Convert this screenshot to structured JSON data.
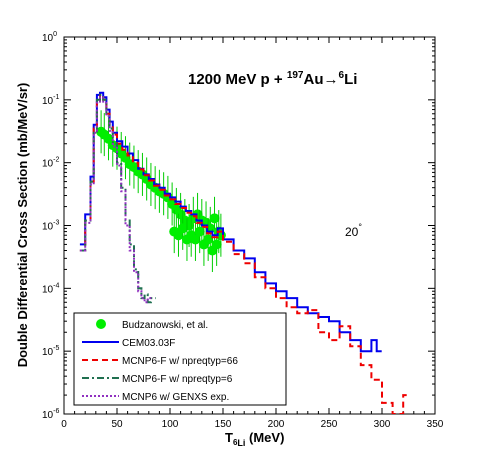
{
  "chart_data": {
    "type": "line",
    "title_parts": {
      "pre": "1200 MeV p + ",
      "sup1": "197",
      "mid": "Au",
      "arrow": "→",
      "sup2": "6",
      "post": "Li"
    },
    "annotation": {
      "value": "20",
      "unit": "°"
    },
    "xlabel": {
      "main": "T",
      "sub": "6",
      "sub2": "Li",
      "unit": " (MeV)"
    },
    "ylabel": "Double Differential Cross Section (mb/MeV/sr)",
    "xlim": [
      0,
      350
    ],
    "ylim_log10": [
      -6,
      0
    ],
    "x_ticks": [
      "0",
      "50",
      "100",
      "150",
      "200",
      "250",
      "300",
      "350"
    ],
    "y_ticks": [
      {
        "base": "10",
        "exp": "0"
      },
      {
        "base": "10",
        "exp": "-1"
      },
      {
        "base": "10",
        "exp": "-2"
      },
      {
        "base": "10",
        "exp": "-3"
      },
      {
        "base": "10",
        "exp": "-4"
      },
      {
        "base": "10",
        "exp": "-5"
      },
      {
        "base": "10",
        "exp": "-6"
      }
    ],
    "y_scale": "log",
    "legend_position": "bottom-left",
    "series": [
      {
        "name": "Budzanowski, et al.",
        "kind": "points",
        "color": "#00ee00",
        "points": [
          [
            35,
            0.031
          ],
          [
            38,
            0.028
          ],
          [
            42,
            0.024
          ],
          [
            46,
            0.019
          ],
          [
            50,
            0.017
          ],
          [
            54,
            0.014
          ],
          [
            58,
            0.012
          ],
          [
            62,
            0.0095
          ],
          [
            66,
            0.0085
          ],
          [
            70,
            0.0072
          ],
          [
            74,
            0.0065
          ],
          [
            78,
            0.0055
          ],
          [
            82,
            0.0045
          ],
          [
            86,
            0.004
          ],
          [
            90,
            0.0035
          ],
          [
            94,
            0.0032
          ],
          [
            98,
            0.0028
          ],
          [
            102,
            0.0022
          ],
          [
            106,
            0.0018
          ],
          [
            110,
            0.0015
          ],
          [
            114,
            0.0012
          ],
          [
            118,
            0.001
          ],
          [
            122,
            0.0013
          ],
          [
            126,
            0.0015
          ],
          [
            130,
            0.0012
          ],
          [
            134,
            0.0011
          ],
          [
            138,
            0.0009
          ],
          [
            142,
            0.0013
          ],
          [
            146,
            0.0008
          ],
          [
            104,
            0.0008
          ],
          [
            108,
            0.0007
          ],
          [
            112,
            0.0009
          ],
          [
            116,
            0.0006
          ],
          [
            120,
            0.0007
          ],
          [
            124,
            0.0006
          ],
          [
            128,
            0.0008
          ],
          [
            132,
            0.0005
          ],
          [
            136,
            0.0006
          ],
          [
            140,
            0.0004
          ],
          [
            144,
            0.0005
          ],
          [
            148,
            0.0007
          ]
        ]
      },
      {
        "name": "CEM03.03F",
        "kind": "step",
        "color": "#0000ee",
        "dash": "",
        "x": [
          15,
          20,
          25,
          28,
          31,
          34,
          37,
          40,
          43,
          46,
          50,
          55,
          60,
          65,
          70,
          75,
          80,
          85,
          90,
          95,
          100,
          105,
          110,
          115,
          120,
          125,
          130,
          135,
          140,
          145,
          150,
          160,
          170,
          180,
          190,
          200,
          210,
          220,
          230,
          240,
          250,
          260,
          270,
          280,
          290,
          295
        ],
        "y": [
          0.0005,
          0.0015,
          0.006,
          0.04,
          0.12,
          0.13,
          0.11,
          0.07,
          0.045,
          0.03,
          0.022,
          0.018,
          0.014,
          0.011,
          0.008,
          0.0065,
          0.0055,
          0.0045,
          0.004,
          0.0032,
          0.0028,
          0.0024,
          0.002,
          0.0017,
          0.0015,
          0.0012,
          0.001,
          0.0008,
          0.0007,
          0.0009,
          0.0006,
          0.0004,
          0.0003,
          0.00018,
          0.00012,
          9e-05,
          7e-05,
          5e-05,
          4e-05,
          3.5e-05,
          3e-05,
          2e-05,
          1.5e-05,
          1e-05,
          1.5e-05,
          1e-05
        ]
      },
      {
        "name": "MCNP6-F w/ npreqtyp=66",
        "kind": "step",
        "color": "#ee0000",
        "dash": "6,4",
        "x": [
          15,
          20,
          25,
          28,
          31,
          34,
          37,
          40,
          43,
          46,
          50,
          55,
          60,
          65,
          70,
          75,
          80,
          85,
          90,
          95,
          100,
          105,
          110,
          115,
          120,
          125,
          130,
          135,
          140,
          145,
          150,
          160,
          170,
          180,
          190,
          200,
          210,
          220,
          230,
          240,
          250,
          260,
          270,
          280,
          290,
          300,
          310,
          320
        ],
        "y": [
          0.0004,
          0.0012,
          0.005,
          0.035,
          0.1,
          0.12,
          0.1,
          0.06,
          0.04,
          0.028,
          0.02,
          0.016,
          0.013,
          0.01,
          0.0078,
          0.0063,
          0.0052,
          0.0043,
          0.0037,
          0.003,
          0.0026,
          0.0022,
          0.0019,
          0.0016,
          0.0014,
          0.0011,
          0.00095,
          0.00075,
          0.00065,
          0.0008,
          0.00055,
          0.00035,
          0.00025,
          0.00015,
          0.0001,
          7e-05,
          5e-05,
          4e-05,
          4.5e-05,
          2e-05,
          1.5e-05,
          2.5e-05,
          1.2e-05,
          6e-06,
          3.5e-06,
          1.5e-06,
          1e-06,
          2e-06
        ]
      },
      {
        "name": "MCNP6-F w/ npreqtyp=6",
        "kind": "step",
        "color": "#207050",
        "dash": "7,3,2,3",
        "x": [
          15,
          20,
          25,
          28,
          31,
          34,
          37,
          40,
          43,
          46,
          50,
          54,
          58,
          62,
          66,
          70,
          73,
          76,
          79,
          82
        ],
        "y": [
          0.0004,
          0.0012,
          0.005,
          0.03,
          0.1,
          0.12,
          0.1,
          0.06,
          0.035,
          0.02,
          0.01,
          0.004,
          0.0012,
          0.0005,
          0.0002,
          0.0001,
          7e-05,
          8e-05,
          6e-05,
          7e-05
        ]
      },
      {
        "name": "MCNP6 w/ GENXS exp.",
        "kind": "step",
        "color": "#9030c0",
        "dash": "2,2",
        "x": [
          15,
          20,
          25,
          28,
          31,
          34,
          37,
          40,
          43,
          46,
          50,
          54,
          58,
          62,
          66,
          70,
          73,
          76,
          79
        ],
        "y": [
          0.0004,
          0.0011,
          0.0045,
          0.03,
          0.09,
          0.11,
          0.09,
          0.055,
          0.032,
          0.018,
          0.009,
          0.0035,
          0.001,
          0.0004,
          0.00018,
          9e-05,
          7e-05,
          6e-05,
          7e-05
        ]
      }
    ]
  }
}
